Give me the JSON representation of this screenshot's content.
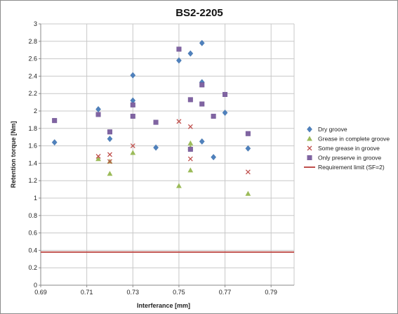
{
  "chart_data": {
    "type": "scatter",
    "title": "BS2-2205",
    "xlabel": "Interferance [mm]",
    "ylabel": "Retention torque [Nm]",
    "xlim": [
      0.69,
      0.8
    ],
    "ylim": [
      0,
      3
    ],
    "x_ticks": [
      "0.69",
      "0.71",
      "0.73",
      "0.75",
      "0.77",
      "0.79"
    ],
    "y_ticks": [
      "0",
      "0.2",
      "0.4",
      "0.6",
      "0.8",
      "1",
      "1.2",
      "1.4",
      "1.6",
      "1.8",
      "2",
      "2.2",
      "2.4",
      "2.6",
      "2.8",
      "3"
    ],
    "grid": "horizontal and vertical",
    "legend_position": "right",
    "series": [
      {
        "name": "Dry groove",
        "marker": "diamond",
        "color": "#4f81bd",
        "points": [
          [
            0.696,
            1.64
          ],
          [
            0.715,
            2.02
          ],
          [
            0.72,
            1.68
          ],
          [
            0.73,
            2.41
          ],
          [
            0.73,
            2.12
          ],
          [
            0.74,
            1.58
          ],
          [
            0.75,
            2.58
          ],
          [
            0.755,
            2.66
          ],
          [
            0.76,
            2.78
          ],
          [
            0.76,
            2.33
          ],
          [
            0.76,
            1.65
          ],
          [
            0.765,
            1.47
          ],
          [
            0.77,
            1.98
          ],
          [
            0.78,
            1.57
          ]
        ]
      },
      {
        "name": "Grease in complete groove",
        "marker": "triangle",
        "color": "#9bbb59",
        "points": [
          [
            0.715,
            1.45
          ],
          [
            0.72,
            1.42
          ],
          [
            0.72,
            1.28
          ],
          [
            0.73,
            1.52
          ],
          [
            0.75,
            1.14
          ],
          [
            0.755,
            1.63
          ],
          [
            0.755,
            1.58
          ],
          [
            0.755,
            1.32
          ],
          [
            0.78,
            1.05
          ]
        ]
      },
      {
        "name": "Some grease in groove",
        "marker": "x",
        "color": "#c0504d",
        "points": [
          [
            0.715,
            1.48
          ],
          [
            0.72,
            1.5
          ],
          [
            0.72,
            1.42
          ],
          [
            0.73,
            1.6
          ],
          [
            0.75,
            1.88
          ],
          [
            0.755,
            1.82
          ],
          [
            0.755,
            1.45
          ],
          [
            0.78,
            1.3
          ]
        ]
      },
      {
        "name": "Only preserve in groove",
        "marker": "square",
        "color": "#8064a2",
        "points": [
          [
            0.696,
            1.89
          ],
          [
            0.715,
            1.96
          ],
          [
            0.72,
            1.76
          ],
          [
            0.73,
            2.07
          ],
          [
            0.73,
            1.94
          ],
          [
            0.74,
            1.87
          ],
          [
            0.75,
            2.71
          ],
          [
            0.755,
            2.13
          ],
          [
            0.755,
            1.56
          ],
          [
            0.76,
            2.3
          ],
          [
            0.76,
            2.08
          ],
          [
            0.765,
            1.94
          ],
          [
            0.77,
            2.19
          ],
          [
            0.78,
            1.74
          ]
        ]
      }
    ],
    "reference_line": {
      "name": "Requirement limit (SF=2)",
      "y": 0.38,
      "color": "#c0504d"
    }
  }
}
